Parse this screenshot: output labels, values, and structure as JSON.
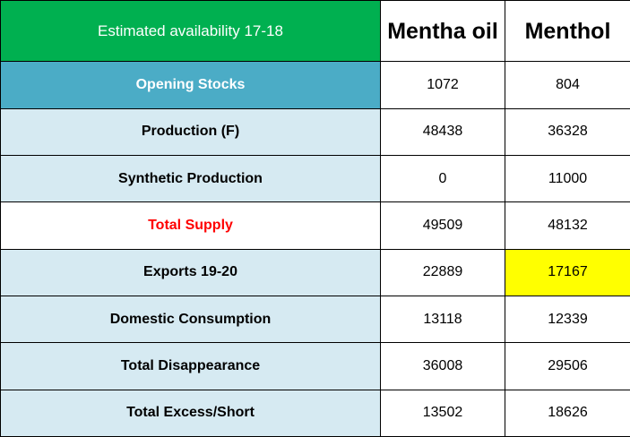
{
  "colors": {
    "title_bg": "#00b050",
    "opening_bg": "#4bacc6",
    "label_bg": "#d6eaf2",
    "supply_text": "#ff0000",
    "highlight_bg": "#ffff00"
  },
  "table": {
    "title": "Estimated availability 17-18",
    "columns": [
      "Mentha oil",
      "Menthol"
    ],
    "rows": [
      {
        "label": "Opening Stocks",
        "values": [
          "1072",
          "804"
        ]
      },
      {
        "label": "Production (F)",
        "values": [
          "48438",
          "36328"
        ]
      },
      {
        "label": "Synthetic Production",
        "values": [
          "0",
          "11000"
        ]
      },
      {
        "label": "Total Supply",
        "values": [
          "49509",
          "48132"
        ]
      },
      {
        "label": "Exports 19-20",
        "values": [
          "22889",
          "17167"
        ]
      },
      {
        "label": "Domestic Consumption",
        "values": [
          "13118",
          "12339"
        ]
      },
      {
        "label": "Total Disappearance",
        "values": [
          "36008",
          "29506"
        ]
      },
      {
        "label": "Total Excess/Short",
        "values": [
          "13502",
          "18626"
        ]
      }
    ]
  }
}
